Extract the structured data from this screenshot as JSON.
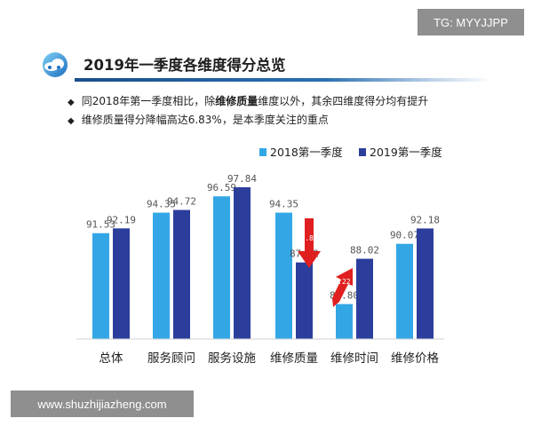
{
  "tag_label": "TG: MYYJJPP",
  "watermark": "www.shuzhijiazheng.com",
  "title": "2019年一季度各维度得分总览",
  "bullets": [
    {
      "pre": "同2018年第一季度相比，除",
      "bold": "维修质量",
      "post": "维度以外，其余四维度得分均有提升"
    },
    {
      "pre": "维修质量得分降幅高达6.83%，是本季度关注的重点",
      "bold": "",
      "post": ""
    }
  ],
  "icons": {
    "bullet": "diamond-icon",
    "logo": "cloud-logo-icon",
    "annotation": "red-arrow-icon"
  },
  "chart_data": {
    "type": "bar",
    "categories": [
      "总体",
      "服务顾问",
      "服务设施",
      "维修质量",
      "维修时间",
      "维修价格"
    ],
    "series": [
      {
        "name": "2018第一季度",
        "color": "#33a7e6",
        "values": [
          91.53,
          94.35,
          96.59,
          94.35,
          81.8,
          90.07
        ]
      },
      {
        "name": "2019第一季度",
        "color": "#2c3e9c",
        "values": [
          92.19,
          94.72,
          97.84,
          87.52,
          88.02,
          92.18
        ]
      }
    ],
    "annotations": [
      {
        "category": "维修质量",
        "text": "6.83",
        "direction": "down",
        "color": "#e02020"
      },
      {
        "category": "维修时间",
        "text": "6.22",
        "direction": "up",
        "color": "#e02020"
      }
    ],
    "legend_position": "top-right",
    "grid": false
  }
}
